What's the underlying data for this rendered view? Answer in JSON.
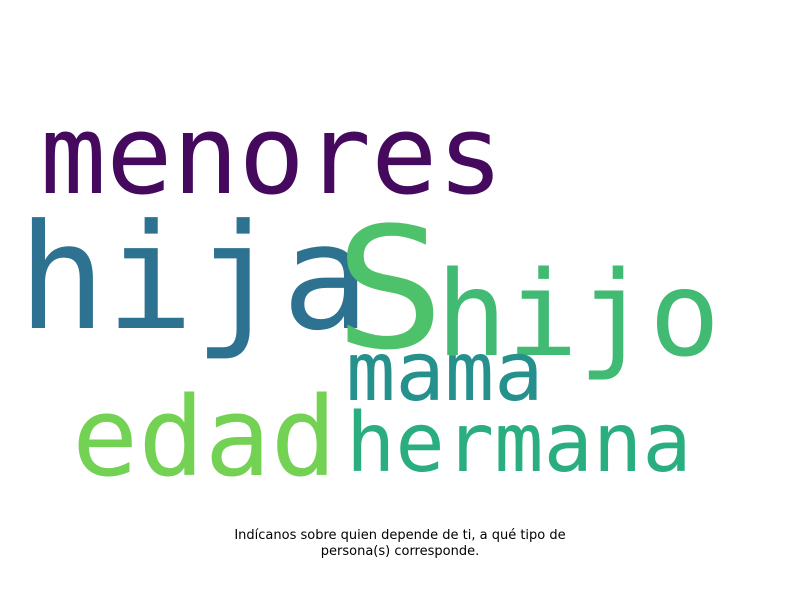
{
  "words": [
    {
      "text": "menores",
      "color": "#450a5e"
    },
    {
      "text": "hija",
      "color": "#2e7291"
    },
    {
      "text": "S",
      "color": "#4ec26a"
    },
    {
      "text": "hijo",
      "color": "#41ba74"
    },
    {
      "text": "mama",
      "color": "#26908c"
    },
    {
      "text": "edad",
      "color": "#73d153"
    },
    {
      "text": "hermana",
      "color": "#2aae7f"
    }
  ],
  "caption": {
    "line1": "Indícanos sobre quien depende de ti, a qué tipo de",
    "line2": "persona(s) corresponde."
  }
}
